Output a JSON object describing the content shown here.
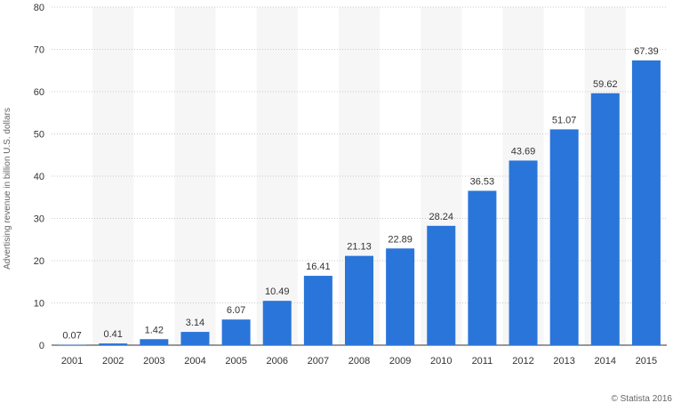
{
  "chart_data": {
    "type": "bar",
    "categories": [
      "2001",
      "2002",
      "2003",
      "2004",
      "2005",
      "2006",
      "2007",
      "2008",
      "2009",
      "2010",
      "2011",
      "2012",
      "2013",
      "2014",
      "2015"
    ],
    "values": [
      0.07,
      0.41,
      1.42,
      3.14,
      6.07,
      10.49,
      16.41,
      21.13,
      22.89,
      28.24,
      36.53,
      43.69,
      51.07,
      59.62,
      67.39
    ],
    "value_labels": [
      "0.07",
      "0.41",
      "1.42",
      "3.14",
      "6.07",
      "10.49",
      "16.41",
      "21.13",
      "22.89",
      "28.24",
      "36.53",
      "43.69",
      "51.07",
      "59.62",
      "67.39"
    ],
    "title": "",
    "xlabel": "",
    "ylabel": "Advertising revenue in billion U.S. dollars",
    "ylim": [
      0,
      80
    ],
    "yticks": [
      "0",
      "10",
      "20",
      "30",
      "40",
      "50",
      "60",
      "70",
      "80"
    ],
    "grid": true,
    "legend": "none",
    "bar_color": "#2a75d9",
    "alt_band_color": "#f6f6f6"
  },
  "credit": "© Statista 2016"
}
